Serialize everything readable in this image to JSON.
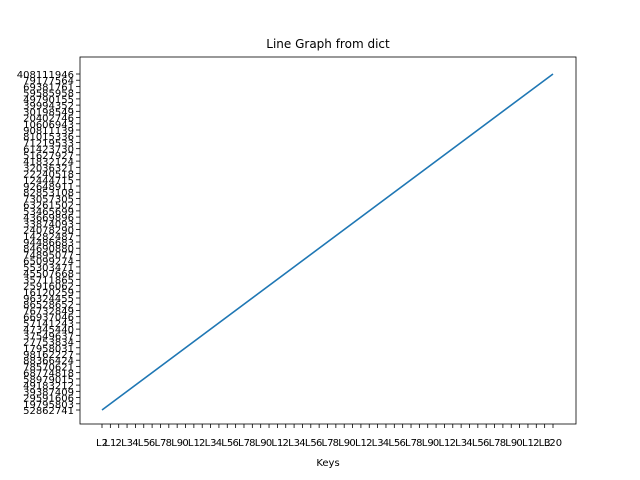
{
  "chart_data": {
    "type": "line",
    "title": "Line Graph from dict",
    "xlabel": "Keys",
    "ylabel": "",
    "x_tick_first": "L2",
    "x_tick_last": "L20",
    "y_tick_first": "52862741",
    "y_tick_last": "408111946",
    "n_points": 55,
    "series": [
      {
        "color": "#1f77b4",
        "shape": "straight rising line from first key to last key"
      }
    ],
    "grid": false,
    "legend": "none"
  }
}
